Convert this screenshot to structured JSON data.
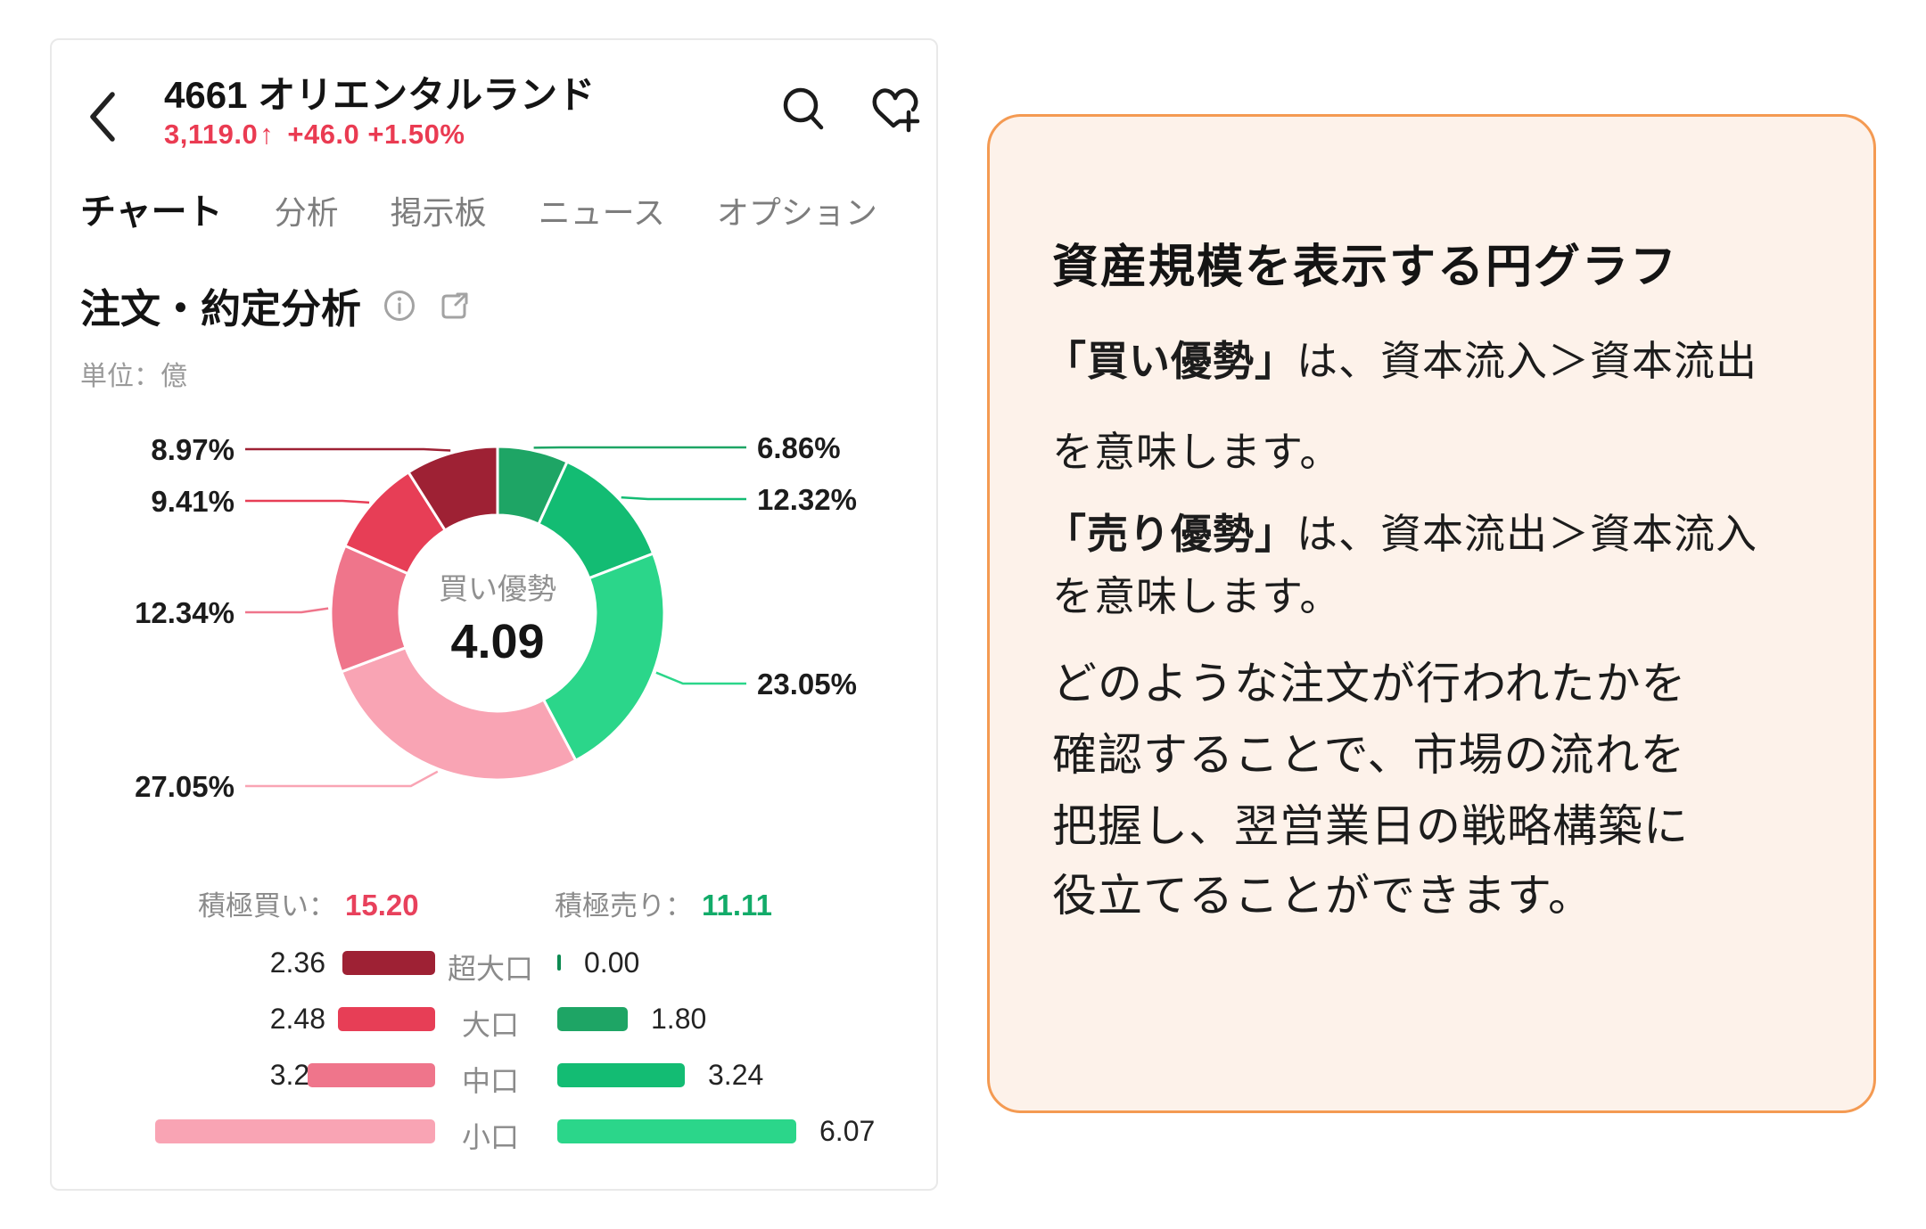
{
  "header": {
    "title": "4661 オリエンタルランド",
    "price": "3,119.0",
    "arrow": "↑",
    "change": "+46.0",
    "change_pct": "+1.50%"
  },
  "tabs": [
    {
      "label": "チャート",
      "active": true
    },
    {
      "label": "分析",
      "active": false
    },
    {
      "label": "掲示板",
      "active": false
    },
    {
      "label": "ニュース",
      "active": false
    },
    {
      "label": "オプション",
      "active": false
    }
  ],
  "section": {
    "title": "注文・約定分析",
    "unit": "単位：億"
  },
  "icons": {
    "back": "chevron-left",
    "search": "magnifier",
    "favorite": "heart-plus",
    "info": "info-circle",
    "share": "share-box-arrow"
  },
  "colors": {
    "price_red": "#ea3b52",
    "buy_total_red": "#e8415c",
    "sell_total_green": "#12ab69",
    "tab_underline_orange": "#ed7a1c",
    "panel_border": "#f49a52",
    "panel_bg": "#fdf2ea"
  },
  "chart_data": {
    "type": "donut",
    "title": "注文・約定分析",
    "unit": "億",
    "center_label": "買い優勢",
    "center_value": "4.09",
    "segments": [
      {
        "name": "積極売り 大口",
        "pct": 6.86,
        "label": "6.86%",
        "color": "#1ea565"
      },
      {
        "name": "積極売り 中口",
        "pct": 12.32,
        "label": "12.32%",
        "color": "#13bc73"
      },
      {
        "name": "積極売り 小口",
        "pct": 23.05,
        "label": "23.05%",
        "color": "#2bd68a"
      },
      {
        "name": "積極買い 小口",
        "pct": 27.05,
        "label": "27.05%",
        "color": "#f9a4b4"
      },
      {
        "name": "積極買い 中口",
        "pct": 12.34,
        "label": "12.34%",
        "color": "#ef758b"
      },
      {
        "name": "積極買い 大口",
        "pct": 9.41,
        "label": "9.41%",
        "color": "#e73e56"
      },
      {
        "name": "積極買い 超大口",
        "pct": 8.97,
        "label": "8.97%",
        "color": "#9e2134"
      }
    ],
    "legend": {
      "buy_label": "積極買い：",
      "buy_total": "15.20",
      "buy_color": "#e8415c",
      "sell_label": "積極売り：",
      "sell_total": "11.11",
      "sell_color": "#12ab69",
      "rows": [
        {
          "category": "超大口",
          "buy": "2.36",
          "sell": "0.00",
          "buy_color": "#9e2134",
          "sell_color": "#0d8a52"
        },
        {
          "category": "大口",
          "buy": "2.48",
          "sell": "1.80",
          "buy_color": "#e73e56",
          "sell_color": "#1ea565"
        },
        {
          "category": "中口",
          "buy": "3.25",
          "sell": "3.24",
          "buy_color": "#ef758b",
          "sell_color": "#13bc73"
        },
        {
          "category": "小口",
          "buy": "7.12",
          "sell": "6.07",
          "buy_color": "#f9a4b4",
          "sell_color": "#2bd68a"
        }
      ]
    }
  },
  "panel": {
    "heading": "資産規模を表示する円グラフ",
    "p1_bold": "「買い優勢」",
    "p1_rest": "は、資本流入＞資本流出",
    "p1_line2": "を意味します。",
    "p2_bold": "「売り優勢」",
    "p2_rest": "は、資本流出＞資本流入",
    "p2_line2": "を意味します。",
    "p3_lines": [
      "どのような注文が行われたかを",
      "確認することで、市場の流れを",
      "把握し、翌営業日の戦略構築に",
      "役立てることができます。"
    ]
  }
}
